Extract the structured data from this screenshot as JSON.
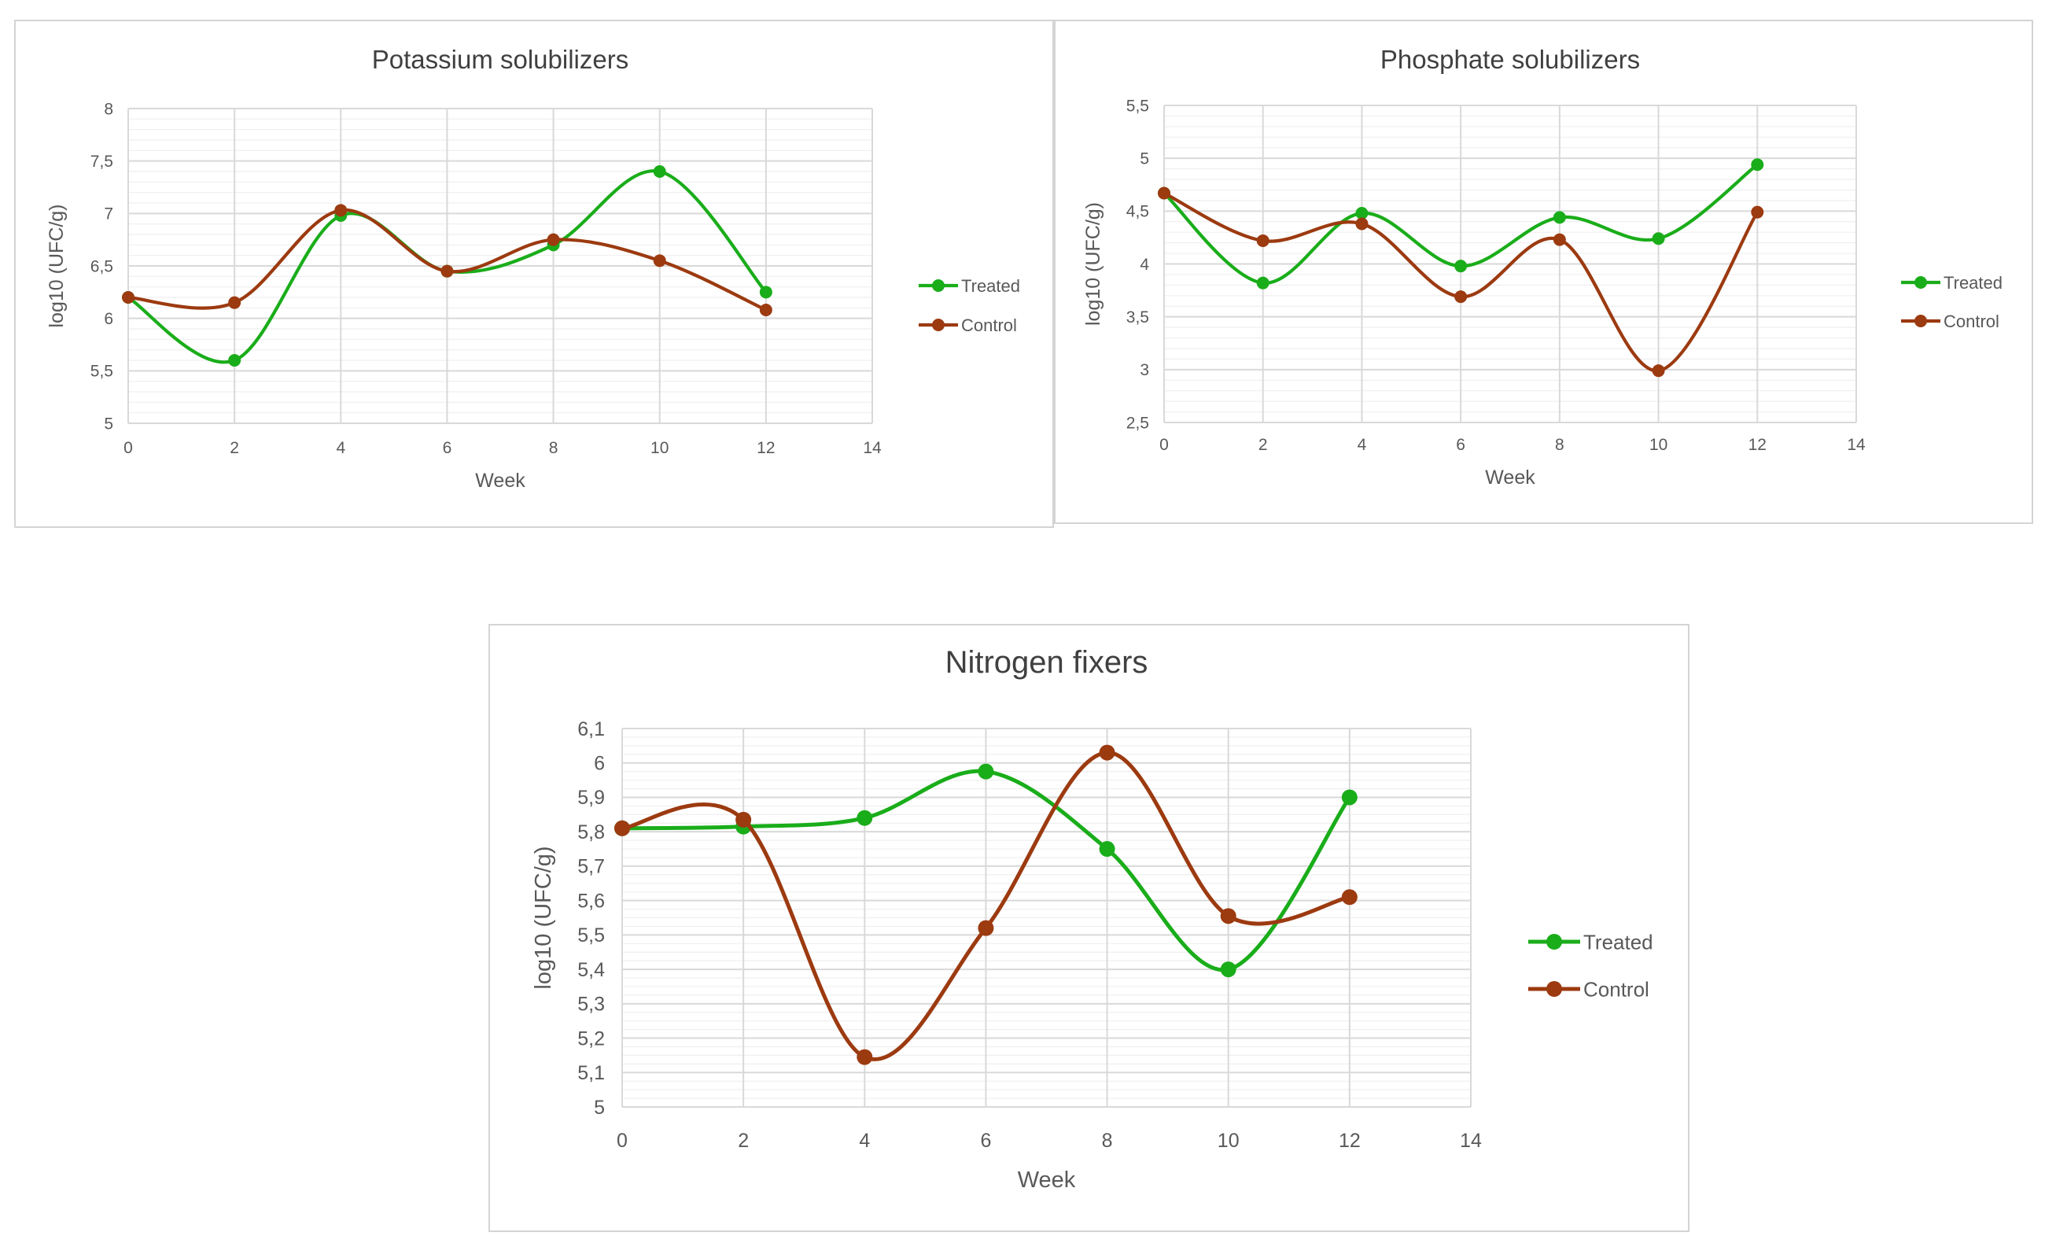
{
  "colors": {
    "treated": "#1aad1a",
    "control": "#9c3a10",
    "grid": "#d9d9d9",
    "minor_grid": "#efefef",
    "text": "#595959",
    "title": "#404040"
  },
  "chart_data": [
    {
      "type": "line",
      "title": "Potassium solubilizers",
      "xlabel": "Week",
      "ylabel": "log10 (UFC/g)",
      "xlim": [
        0,
        14
      ],
      "ylim": [
        5,
        8
      ],
      "x_ticks": [
        "0",
        "2",
        "4",
        "6",
        "8",
        "10",
        "12",
        "14"
      ],
      "y_ticks": [
        "5",
        "5,5",
        "6",
        "6,5",
        "7",
        "7,5",
        "8"
      ],
      "legend_position": "right",
      "smooth": true,
      "grid": true,
      "series": [
        {
          "name": "Treated",
          "x": [
            0,
            2,
            4,
            6,
            8,
            10,
            12
          ],
          "values": [
            6.2,
            5.6,
            6.98,
            6.45,
            6.7,
            7.4,
            6.25
          ]
        },
        {
          "name": "Control",
          "x": [
            0,
            2,
            4,
            6,
            8,
            10,
            12
          ],
          "values": [
            6.2,
            6.15,
            7.03,
            6.45,
            6.75,
            6.55,
            6.08
          ]
        }
      ]
    },
    {
      "type": "line",
      "title": "Phosphate solubilizers",
      "xlabel": "Week",
      "ylabel": "log10 (UFC/g)",
      "xlim": [
        0,
        14
      ],
      "ylim": [
        2.5,
        5.5
      ],
      "x_ticks": [
        "0",
        "2",
        "4",
        "6",
        "8",
        "10",
        "12",
        "14"
      ],
      "y_ticks": [
        "2,5",
        "3",
        "3,5",
        "4",
        "4,5",
        "5",
        "5,5"
      ],
      "legend_position": "right",
      "smooth": true,
      "grid": true,
      "series": [
        {
          "name": "Treated",
          "x": [
            0,
            2,
            4,
            6,
            8,
            10,
            12
          ],
          "values": [
            4.67,
            3.82,
            4.48,
            3.98,
            4.44,
            4.24,
            4.94
          ]
        },
        {
          "name": "Control",
          "x": [
            0,
            2,
            4,
            6,
            8,
            10,
            12
          ],
          "values": [
            4.67,
            4.22,
            4.38,
            3.69,
            4.23,
            2.99,
            4.49
          ]
        }
      ]
    },
    {
      "type": "line",
      "title": "Nitrogen fixers",
      "xlabel": "Week",
      "ylabel": "log10 (UFC/g)",
      "xlim": [
        0,
        14
      ],
      "ylim": [
        5,
        6.1
      ],
      "x_ticks": [
        "0",
        "2",
        "4",
        "6",
        "8",
        "10",
        "12",
        "14"
      ],
      "y_ticks": [
        "5",
        "5,1",
        "5,2",
        "5,3",
        "5,4",
        "5,5",
        "5,6",
        "5,7",
        "5,8",
        "5,9",
        "6",
        "6,1"
      ],
      "legend_position": "right",
      "smooth": true,
      "grid": true,
      "series": [
        {
          "name": "Treated",
          "x": [
            0,
            2,
            4,
            6,
            8,
            10,
            12
          ],
          "values": [
            5.81,
            5.815,
            5.84,
            5.975,
            5.75,
            5.4,
            5.9
          ]
        },
        {
          "name": "Control",
          "x": [
            0,
            2,
            4,
            6,
            8,
            10,
            12
          ],
          "values": [
            5.81,
            5.835,
            5.145,
            5.52,
            6.03,
            5.555,
            5.61
          ]
        }
      ]
    }
  ]
}
